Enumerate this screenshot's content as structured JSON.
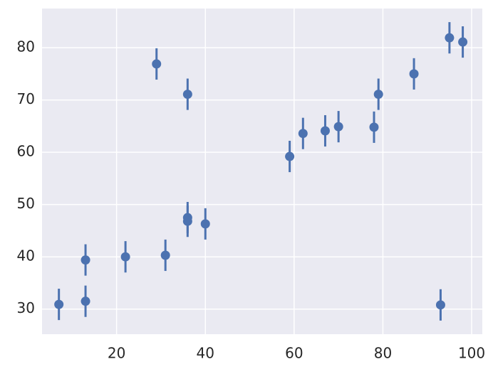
{
  "chart_data": {
    "type": "errorbar",
    "color": "#4c72b0",
    "x": [
      7,
      13,
      13,
      22,
      29,
      31,
      36,
      36,
      36,
      40,
      59,
      62,
      67,
      70,
      78,
      79,
      87,
      93,
      95,
      98
    ],
    "values": [
      30.9,
      39.4,
      31.5,
      40,
      76.9,
      40.3,
      71.1,
      47.5,
      46.8,
      46.3,
      59.2,
      63.6,
      64.1,
      64.9,
      64.8,
      71.1,
      75,
      30.8,
      81.9,
      81.1
    ],
    "errors": [
      3,
      3,
      3,
      3,
      3,
      3,
      3,
      3,
      3,
      3,
      3,
      3,
      3,
      3,
      3,
      3,
      3,
      3,
      3,
      3
    ],
    "xlim": [
      3.2,
      102.4
    ],
    "ylim": [
      25.2,
      87.5
    ],
    "xticks": [
      20,
      40,
      60,
      80,
      100
    ],
    "yticks": [
      30,
      40,
      50,
      60,
      70,
      80
    ],
    "grid": true
  }
}
